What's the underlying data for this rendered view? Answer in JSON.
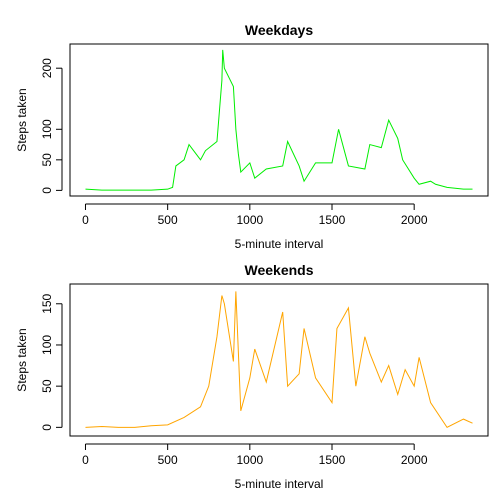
{
  "chart_data": [
    {
      "type": "line",
      "title": "Weekdays",
      "xlabel": "5-minute interval",
      "ylabel": "Steps taken",
      "color": "#00ee00",
      "x": [
        0,
        100,
        200,
        300,
        400,
        500,
        530,
        550,
        600,
        630,
        700,
        730,
        800,
        815,
        830,
        835,
        845,
        900,
        915,
        930,
        945,
        1000,
        1030,
        1100,
        1200,
        1230,
        1300,
        1330,
        1400,
        1500,
        1540,
        1600,
        1700,
        1730,
        1800,
        1845,
        1900,
        1930,
        2000,
        2030,
        2100,
        2130,
        2200,
        2300,
        2355
      ],
      "values": [
        2,
        0.5,
        0.5,
        0.5,
        0.5,
        2,
        5,
        40,
        50,
        75,
        50,
        65,
        80,
        130,
        180,
        230,
        200,
        170,
        100,
        60,
        30,
        45,
        20,
        35,
        40,
        80,
        40,
        15,
        45,
        45,
        100,
        40,
        35,
        75,
        70,
        115,
        85,
        50,
        20,
        10,
        15,
        10,
        5,
        2,
        2
      ],
      "xlim": [
        -94.2,
        2449.2
      ],
      "xticks": [
        0,
        500,
        1000,
        1500,
        2000
      ],
      "ylim": [
        -9.2,
        239.6
      ],
      "yticks": [
        0,
        50,
        100,
        200
      ]
    },
    {
      "type": "line",
      "title": "Weekends",
      "xlabel": "5-minute interval",
      "ylabel": "Steps taken",
      "color": "#ffa500",
      "x": [
        0,
        100,
        200,
        300,
        400,
        500,
        600,
        700,
        750,
        800,
        830,
        845,
        900,
        915,
        945,
        1000,
        1030,
        1100,
        1200,
        1230,
        1300,
        1330,
        1400,
        1500,
        1530,
        1600,
        1645,
        1700,
        1730,
        1800,
        1845,
        1900,
        1945,
        2000,
        2030,
        2100,
        2200,
        2300,
        2355
      ],
      "values": [
        0,
        1,
        0,
        0,
        2,
        3,
        12,
        25,
        50,
        110,
        160,
        150,
        80,
        165,
        20,
        60,
        95,
        55,
        140,
        50,
        65,
        120,
        60,
        30,
        120,
        145,
        50,
        110,
        90,
        55,
        75,
        40,
        70,
        50,
        85,
        30,
        0,
        10,
        5
      ],
      "xlim": [
        -94.2,
        2449.2
      ],
      "xticks": [
        0,
        500,
        1000,
        1500,
        2000
      ],
      "ylim": [
        -10.5,
        174
      ],
      "yticks": [
        0,
        50,
        100,
        150
      ]
    }
  ]
}
